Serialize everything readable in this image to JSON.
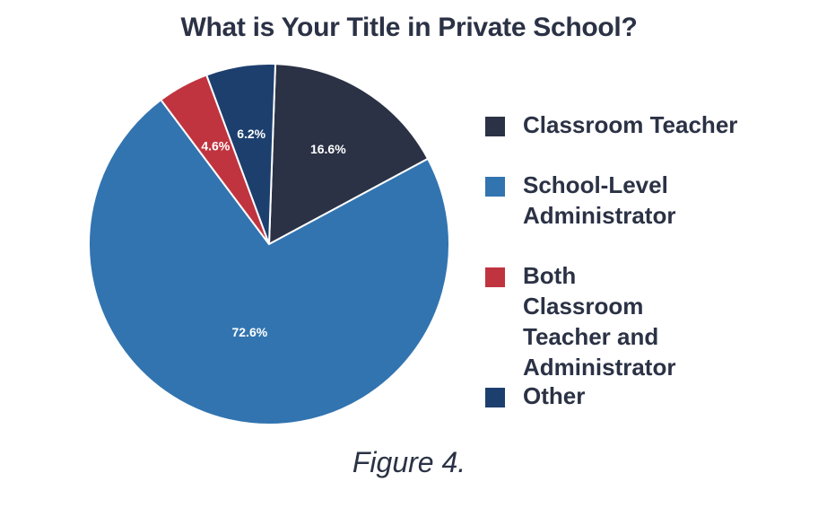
{
  "chart_data": {
    "type": "pie",
    "title": "What is Your Title in Private School?",
    "slices": [
      {
        "label": "Classroom Teacher",
        "value": 16.6,
        "display": "16.6%",
        "color": "#2b3245"
      },
      {
        "label": "School-Level Administrator",
        "value": 72.6,
        "display": "72.6%",
        "color": "#3274b0"
      },
      {
        "label": "Both Classroom Teacher and Administrator",
        "value": 4.6,
        "display": "4.6%",
        "color": "#c0343f"
      },
      {
        "label": "Other",
        "value": 6.2,
        "display": "6.2%",
        "color": "#1d3f6e"
      }
    ],
    "legend_position": "right"
  },
  "caption": "Figure 4."
}
